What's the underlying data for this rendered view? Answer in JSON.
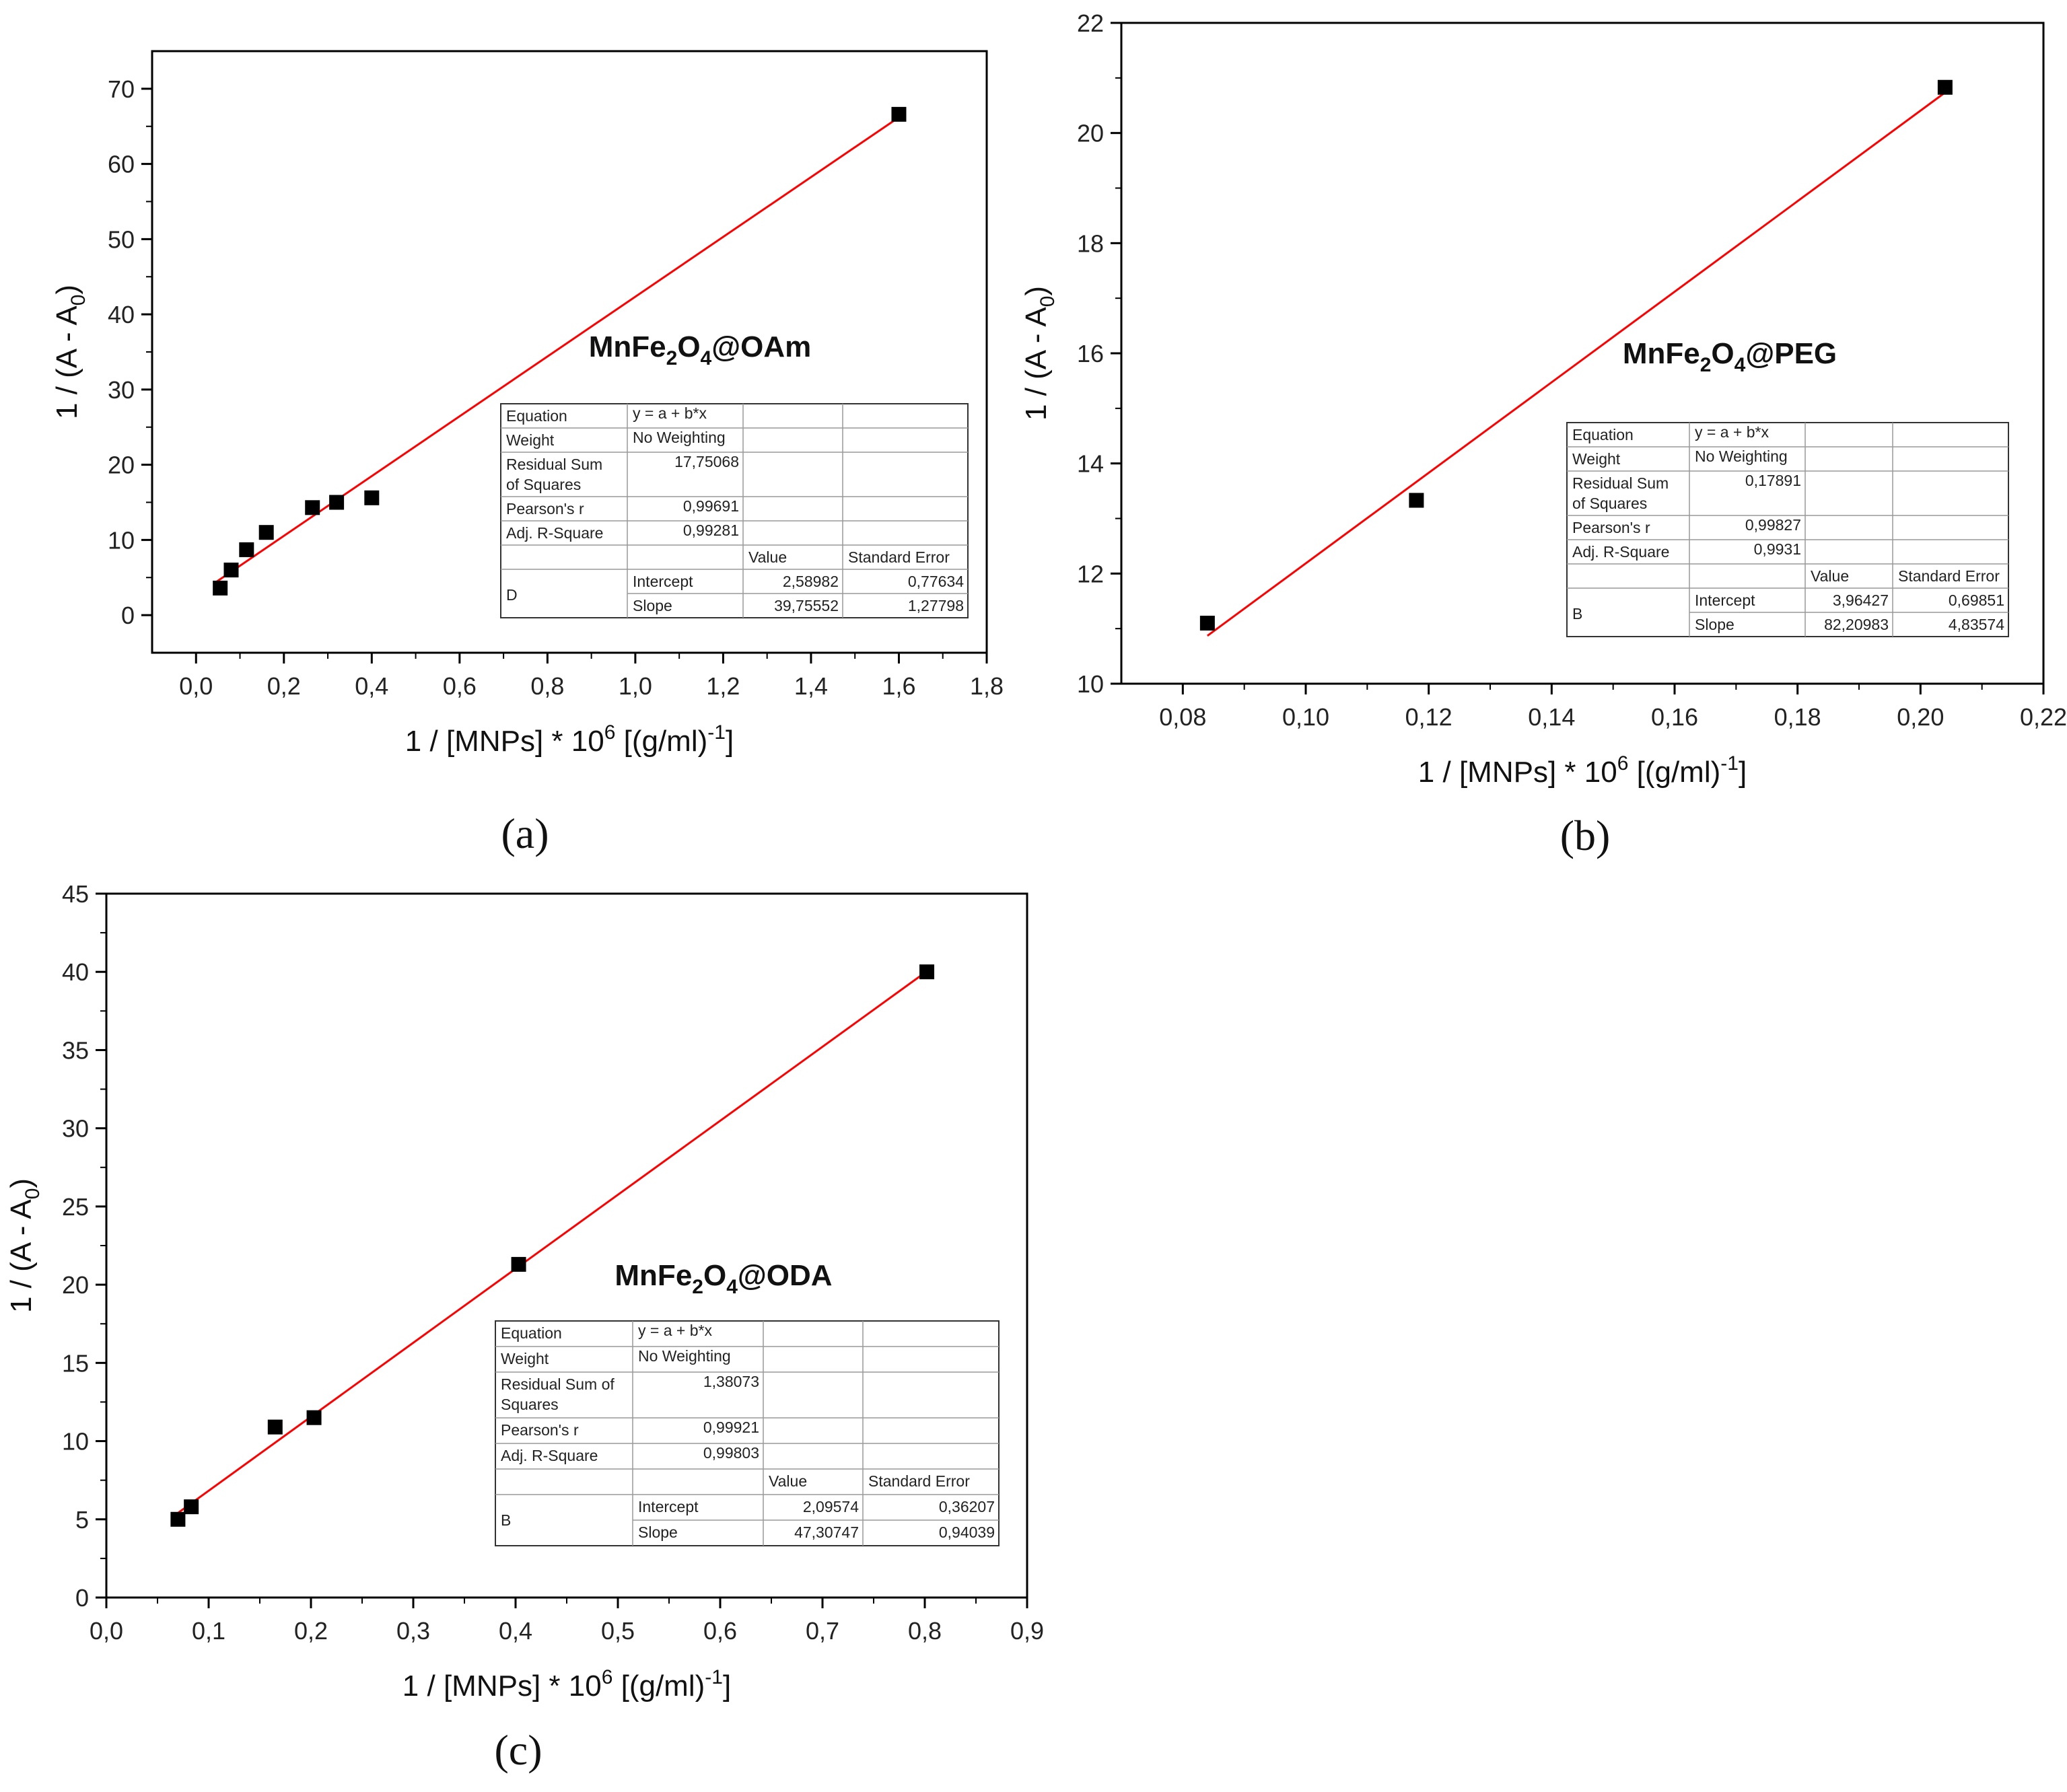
{
  "colors": {
    "fit_line": "#ff0000",
    "marker": "#000000",
    "axes": "#000000"
  },
  "chart_data": [
    {
      "panel": "(a)",
      "type": "scatter",
      "annotation": {
        "base": "MnFe",
        "sub1": "2",
        "mid": "O",
        "sub2": "4",
        "tail": "@OAm"
      },
      "xlabel": {
        "pre": "1 / [MNPs] * 10",
        "sup": "6",
        "mid": " [(g/ml)",
        "sup2": "-1",
        "post": "]"
      },
      "ylabel": {
        "pre": "1 / (A - A",
        "sub": "0",
        "post": ")"
      },
      "xlim": [
        -0.1,
        1.8
      ],
      "ylim": [
        -5,
        75
      ],
      "xticks": [
        "0,0",
        "0,2",
        "0,4",
        "0,6",
        "0,8",
        "1,0",
        "1,2",
        "1,4",
        "1,6",
        "1,8"
      ],
      "xtick_values": [
        0,
        0.2,
        0.4,
        0.6,
        0.8,
        1.0,
        1.2,
        1.4,
        1.6,
        1.8
      ],
      "yticks": [
        "0",
        "10",
        "20",
        "30",
        "40",
        "50",
        "60",
        "70"
      ],
      "ytick_values": [
        0,
        10,
        20,
        30,
        40,
        50,
        60,
        70
      ],
      "series": [
        {
          "name": "data",
          "x": [
            0.055,
            0.08,
            0.115,
            0.16,
            0.265,
            0.32,
            0.4,
            1.6
          ],
          "y": [
            3.6,
            6.0,
            8.7,
            11.0,
            14.3,
            15.0,
            15.6,
            66.6
          ]
        }
      ],
      "fit": {
        "intercept": 2.58982,
        "slope": 39.75552,
        "x_range": [
          0.04,
          1.6
        ]
      },
      "table": {
        "equation_label": "Equation",
        "equation": "y = a + b*x",
        "weight_label": "Weight",
        "weight": "No Weighting",
        "rss_label_1": "Residual Sum",
        "rss_label_2": "of Squares",
        "rss": "17,75068",
        "pearson_label": "Pearson's r",
        "pearson": "0,99691",
        "adjr_label": "Adj. R-Square",
        "adjr": "0,99281",
        "value_header": "Value",
        "se_header": "Standard Error",
        "group": "D",
        "intercept_label": "Intercept",
        "intercept_value": "2,58982",
        "intercept_se": "0,77634",
        "slope_label": "Slope",
        "slope_value": "39,75552",
        "slope_se": "1,27798"
      }
    },
    {
      "panel": "(b)",
      "type": "scatter",
      "annotation": {
        "base": "MnFe",
        "sub1": "2",
        "mid": "O",
        "sub2": "4",
        "tail": "@PEG"
      },
      "xlabel": {
        "pre": "1 / [MNPs] * 10",
        "sup": "6",
        "mid": " [(g/ml)",
        "sup2": "-1",
        "post": "]"
      },
      "ylabel": {
        "pre": "1 / (A - A",
        "sub": "0",
        "post": ")"
      },
      "xlim": [
        0.07,
        0.22
      ],
      "ylim": [
        10,
        22
      ],
      "xticks": [
        "0,08",
        "0,10",
        "0,12",
        "0,14",
        "0,16",
        "0,18",
        "0,20",
        "0,22"
      ],
      "xtick_values": [
        0.08,
        0.1,
        0.12,
        0.14,
        0.16,
        0.18,
        0.2,
        0.22
      ],
      "yticks": [
        "10",
        "12",
        "14",
        "16",
        "18",
        "20",
        "22"
      ],
      "ytick_values": [
        10,
        12,
        14,
        16,
        18,
        20,
        22
      ],
      "series": [
        {
          "name": "data",
          "x": [
            0.084,
            0.118,
            0.204
          ],
          "y": [
            11.1,
            13.33,
            20.83
          ]
        }
      ],
      "fit": {
        "intercept": 3.96427,
        "slope": 82.20983,
        "x_range": [
          0.084,
          0.204
        ]
      },
      "table": {
        "equation_label": "Equation",
        "equation": "y = a + b*x",
        "weight_label": "Weight",
        "weight": "No Weighting",
        "rss_label_1": "Residual Sum",
        "rss_label_2": "of Squares",
        "rss": "0,17891",
        "pearson_label": "Pearson's r",
        "pearson": "0,99827",
        "adjr_label": "Adj. R-Square",
        "adjr": "0,9931",
        "value_header": "Value",
        "se_header": "Standard Error",
        "group": "B",
        "intercept_label": "Intercept",
        "intercept_value": "3,96427",
        "intercept_se": "0,69851",
        "slope_label": "Slope",
        "slope_value": "82,20983",
        "slope_se": "4,83574"
      }
    },
    {
      "panel": "(c)",
      "type": "scatter",
      "annotation": {
        "base": "MnFe",
        "sub1": "2",
        "mid": "O",
        "sub2": "4",
        "tail": "@ODA"
      },
      "xlabel": {
        "pre": "1 / [MNPs] * 10",
        "sup": "6",
        "mid": " [(g/ml)",
        "sup2": "-1",
        "post": "]"
      },
      "ylabel": {
        "pre": "1 / (A - A",
        "sub": "0",
        "post": ")"
      },
      "xlim": [
        0.0,
        0.9
      ],
      "ylim": [
        0,
        45
      ],
      "xticks": [
        "0,0",
        "0,1",
        "0,2",
        "0,3",
        "0,4",
        "0,5",
        "0,6",
        "0,7",
        "0,8",
        "0,9"
      ],
      "xtick_values": [
        0,
        0.1,
        0.2,
        0.3,
        0.4,
        0.5,
        0.6,
        0.7,
        0.8,
        0.9
      ],
      "yticks": [
        "0",
        "5",
        "10",
        "15",
        "20",
        "25",
        "30",
        "35",
        "40",
        "45"
      ],
      "ytick_values": [
        0,
        5,
        10,
        15,
        20,
        25,
        30,
        35,
        40,
        45
      ],
      "series": [
        {
          "name": "data",
          "x": [
            0.07,
            0.083,
            0.165,
            0.203,
            0.403,
            0.802
          ],
          "y": [
            5.0,
            5.8,
            10.9,
            11.5,
            21.3,
            40.0
          ]
        }
      ],
      "fit": {
        "intercept": 2.09574,
        "slope": 47.30747,
        "x_range": [
          0.07,
          0.802
        ]
      },
      "table": {
        "equation_label": "Equation",
        "equation": "y = a + b*x",
        "weight_label": "Weight",
        "weight": "No Weighting",
        "rss_label_1": "Residual Sum of",
        "rss_label_2": "Squares",
        "rss": "1,38073",
        "pearson_label": "Pearson's r",
        "pearson": "0,99921",
        "adjr_label": "Adj. R-Square",
        "adjr": "0,99803",
        "value_header": "Value",
        "se_header": "Standard Error",
        "group": "B",
        "intercept_label": "Intercept",
        "intercept_value": "2,09574",
        "intercept_se": "0,36207",
        "slope_label": "Slope",
        "slope_value": "47,30747",
        "slope_se": "0,94039"
      }
    }
  ]
}
